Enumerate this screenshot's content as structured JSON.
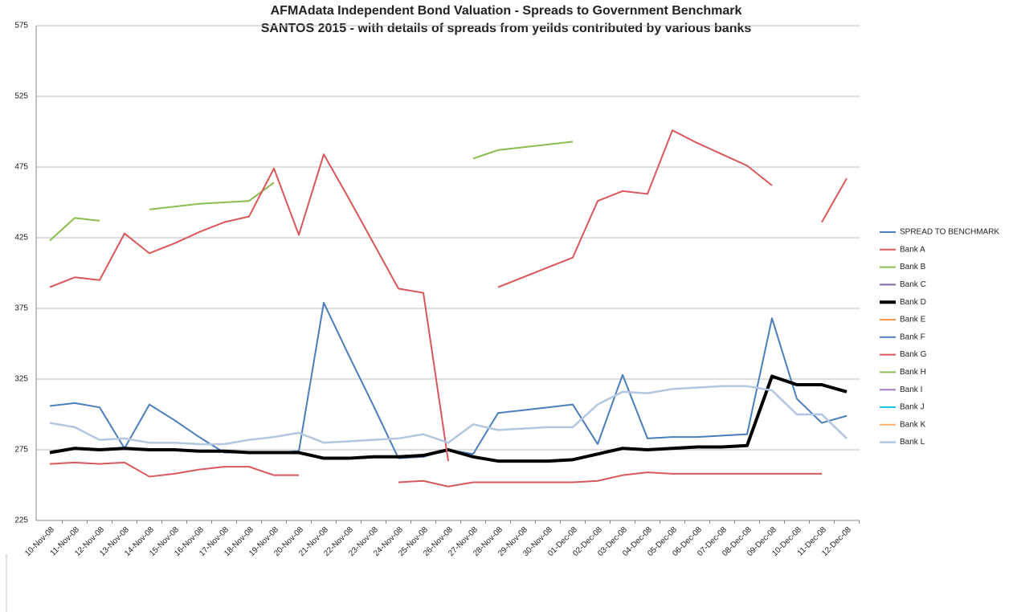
{
  "chart_data": {
    "type": "line",
    "title": "AFMAdata Independent Bond Valuation - Spreads to Government Benchmark",
    "subtitle": "SANTOS 2015 - with details of spreads from yeilds contributed by various banks",
    "categories": [
      "10-Nov-08",
      "11-Nov-08",
      "12-Nov-08",
      "13-Nov-08",
      "14-Nov-08",
      "15-Nov-08",
      "16-Nov-08",
      "17-Nov-08",
      "18-Nov-08",
      "19-Nov-08",
      "20-Nov-08",
      "21-Nov-08",
      "22-Nov-08",
      "23-Nov-08",
      "24-Nov-08",
      "25-Nov-08",
      "26-Nov-08",
      "27-Nov-08",
      "28-Nov-08",
      "29-Nov-08",
      "30-Nov-08",
      "01-Dec-08",
      "02-Dec-08",
      "03-Dec-08",
      "04-Dec-08",
      "05-Dec-08",
      "06-Dec-08",
      "07-Dec-08",
      "08-Dec-08",
      "09-Dec-08",
      "10-Dec-08",
      "11-Dec-08",
      "12-Dec-08"
    ],
    "ylim": [
      225,
      575
    ],
    "yticks": [
      225,
      275,
      325,
      375,
      425,
      475,
      525,
      575
    ],
    "grid": true,
    "legend": "right",
    "series": [
      {
        "name": "SPREAD TO BENCHMARK",
        "color": "#4a7ebb",
        "width": 2,
        "values": [
          306,
          308,
          305,
          276,
          307,
          296,
          284,
          273,
          273,
          273,
          274,
          379,
          342,
          306,
          269,
          270,
          275,
          272,
          301,
          303,
          305,
          307,
          279,
          328,
          283,
          284,
          284,
          285,
          286,
          368,
          311,
          294,
          299
        ]
      },
      {
        "name": "Bank A",
        "color": "#d8575a",
        "width": 2,
        "values": [
          265,
          266,
          265,
          266,
          256,
          258,
          261,
          263,
          263,
          257,
          257,
          null,
          null,
          null,
          252,
          253,
          249,
          252,
          252,
          252,
          252,
          252,
          253,
          257,
          259,
          258,
          258,
          258,
          258,
          258,
          258,
          258,
          null
        ]
      },
      {
        "name": "Bank B",
        "color": "#8cbb4e",
        "width": 2,
        "values": [
          423,
          439,
          437,
          null,
          445,
          447,
          449,
          450,
          451,
          464,
          null,
          null,
          null,
          null,
          null,
          null,
          null,
          481,
          487,
          489,
          491,
          493,
          null,
          null,
          null,
          null,
          null,
          null,
          null,
          null,
          null,
          null,
          null
        ]
      },
      {
        "name": "Bank C",
        "color": "#8064a2",
        "width": 2,
        "values": [
          null,
          null,
          null,
          null,
          null,
          null,
          null,
          null,
          null,
          null,
          null,
          null,
          null,
          null,
          null,
          null,
          null,
          null,
          null,
          null,
          null,
          null,
          null,
          null,
          null,
          null,
          null,
          null,
          null,
          null,
          null,
          null,
          null
        ]
      },
      {
        "name": "Bank D",
        "color": "#000000",
        "width": 4,
        "values": [
          273,
          276,
          275,
          276,
          275,
          275,
          274,
          274,
          273,
          273,
          273,
          269,
          269,
          270,
          270,
          271,
          275,
          270,
          267,
          267,
          267,
          268,
          272,
          276,
          275,
          276,
          277,
          277,
          278,
          327,
          321,
          321,
          316
        ]
      },
      {
        "name": "Bank E",
        "color": "#f79646",
        "width": 2,
        "values": [
          null,
          null,
          null,
          null,
          null,
          null,
          null,
          null,
          null,
          null,
          null,
          null,
          null,
          null,
          null,
          null,
          null,
          null,
          null,
          null,
          null,
          null,
          null,
          null,
          null,
          null,
          null,
          null,
          null,
          null,
          null,
          null,
          null
        ]
      },
      {
        "name": "Bank F",
        "color": "#4a7ebb",
        "width": 2,
        "values": [
          null,
          null,
          null,
          null,
          null,
          null,
          null,
          null,
          null,
          null,
          null,
          null,
          null,
          null,
          null,
          null,
          null,
          null,
          null,
          null,
          null,
          null,
          null,
          null,
          null,
          null,
          null,
          null,
          null,
          null,
          null,
          null,
          null
        ]
      },
      {
        "name": "Bank G",
        "color": "#d8575a",
        "width": 2,
        "values": [
          390,
          397,
          395,
          428,
          414,
          421,
          429,
          436,
          440,
          474,
          427,
          484,
          453,
          421,
          389,
          386,
          267,
          null,
          390,
          397,
          404,
          411,
          451,
          458,
          456,
          501,
          492,
          484,
          476,
          462,
          null,
          436,
          467
        ]
      },
      {
        "name": "Bank H",
        "color": "#8cbb4e",
        "width": 2,
        "values": [
          null,
          null,
          null,
          null,
          null,
          null,
          null,
          null,
          null,
          null,
          null,
          null,
          null,
          null,
          null,
          null,
          null,
          null,
          null,
          null,
          null,
          null,
          null,
          null,
          null,
          null,
          null,
          null,
          null,
          null,
          null,
          null,
          null
        ]
      },
      {
        "name": "Bank I",
        "color": "#a07cc5",
        "width": 2,
        "values": [
          null,
          null,
          null,
          null,
          null,
          null,
          null,
          null,
          null,
          null,
          null,
          null,
          null,
          null,
          null,
          null,
          null,
          null,
          null,
          null,
          null,
          null,
          null,
          null,
          null,
          null,
          null,
          null,
          null,
          null,
          null,
          null,
          null
        ]
      },
      {
        "name": "Bank J",
        "color": "#1cc8e0",
        "width": 2,
        "values": [
          null,
          null,
          null,
          null,
          null,
          null,
          null,
          null,
          null,
          null,
          null,
          null,
          null,
          null,
          null,
          null,
          null,
          null,
          null,
          null,
          null,
          null,
          null,
          null,
          null,
          null,
          null,
          null,
          null,
          null,
          null,
          null,
          null
        ]
      },
      {
        "name": "Bank K",
        "color": "#f9b066",
        "width": 2,
        "values": [
          null,
          null,
          null,
          null,
          null,
          null,
          null,
          null,
          null,
          null,
          null,
          null,
          null,
          null,
          null,
          null,
          null,
          null,
          null,
          null,
          null,
          null,
          null,
          null,
          null,
          null,
          null,
          null,
          null,
          null,
          null,
          null,
          null
        ]
      },
      {
        "name": "Bank L",
        "color": "#b3c6e0",
        "width": 2.5,
        "values": [
          294,
          291,
          282,
          283,
          280,
          280,
          279,
          279,
          282,
          284,
          287,
          280,
          281,
          282,
          283,
          286,
          280,
          293,
          289,
          290,
          291,
          291,
          307,
          316,
          315,
          318,
          319,
          320,
          320,
          317,
          300,
          300,
          283
        ]
      }
    ]
  }
}
